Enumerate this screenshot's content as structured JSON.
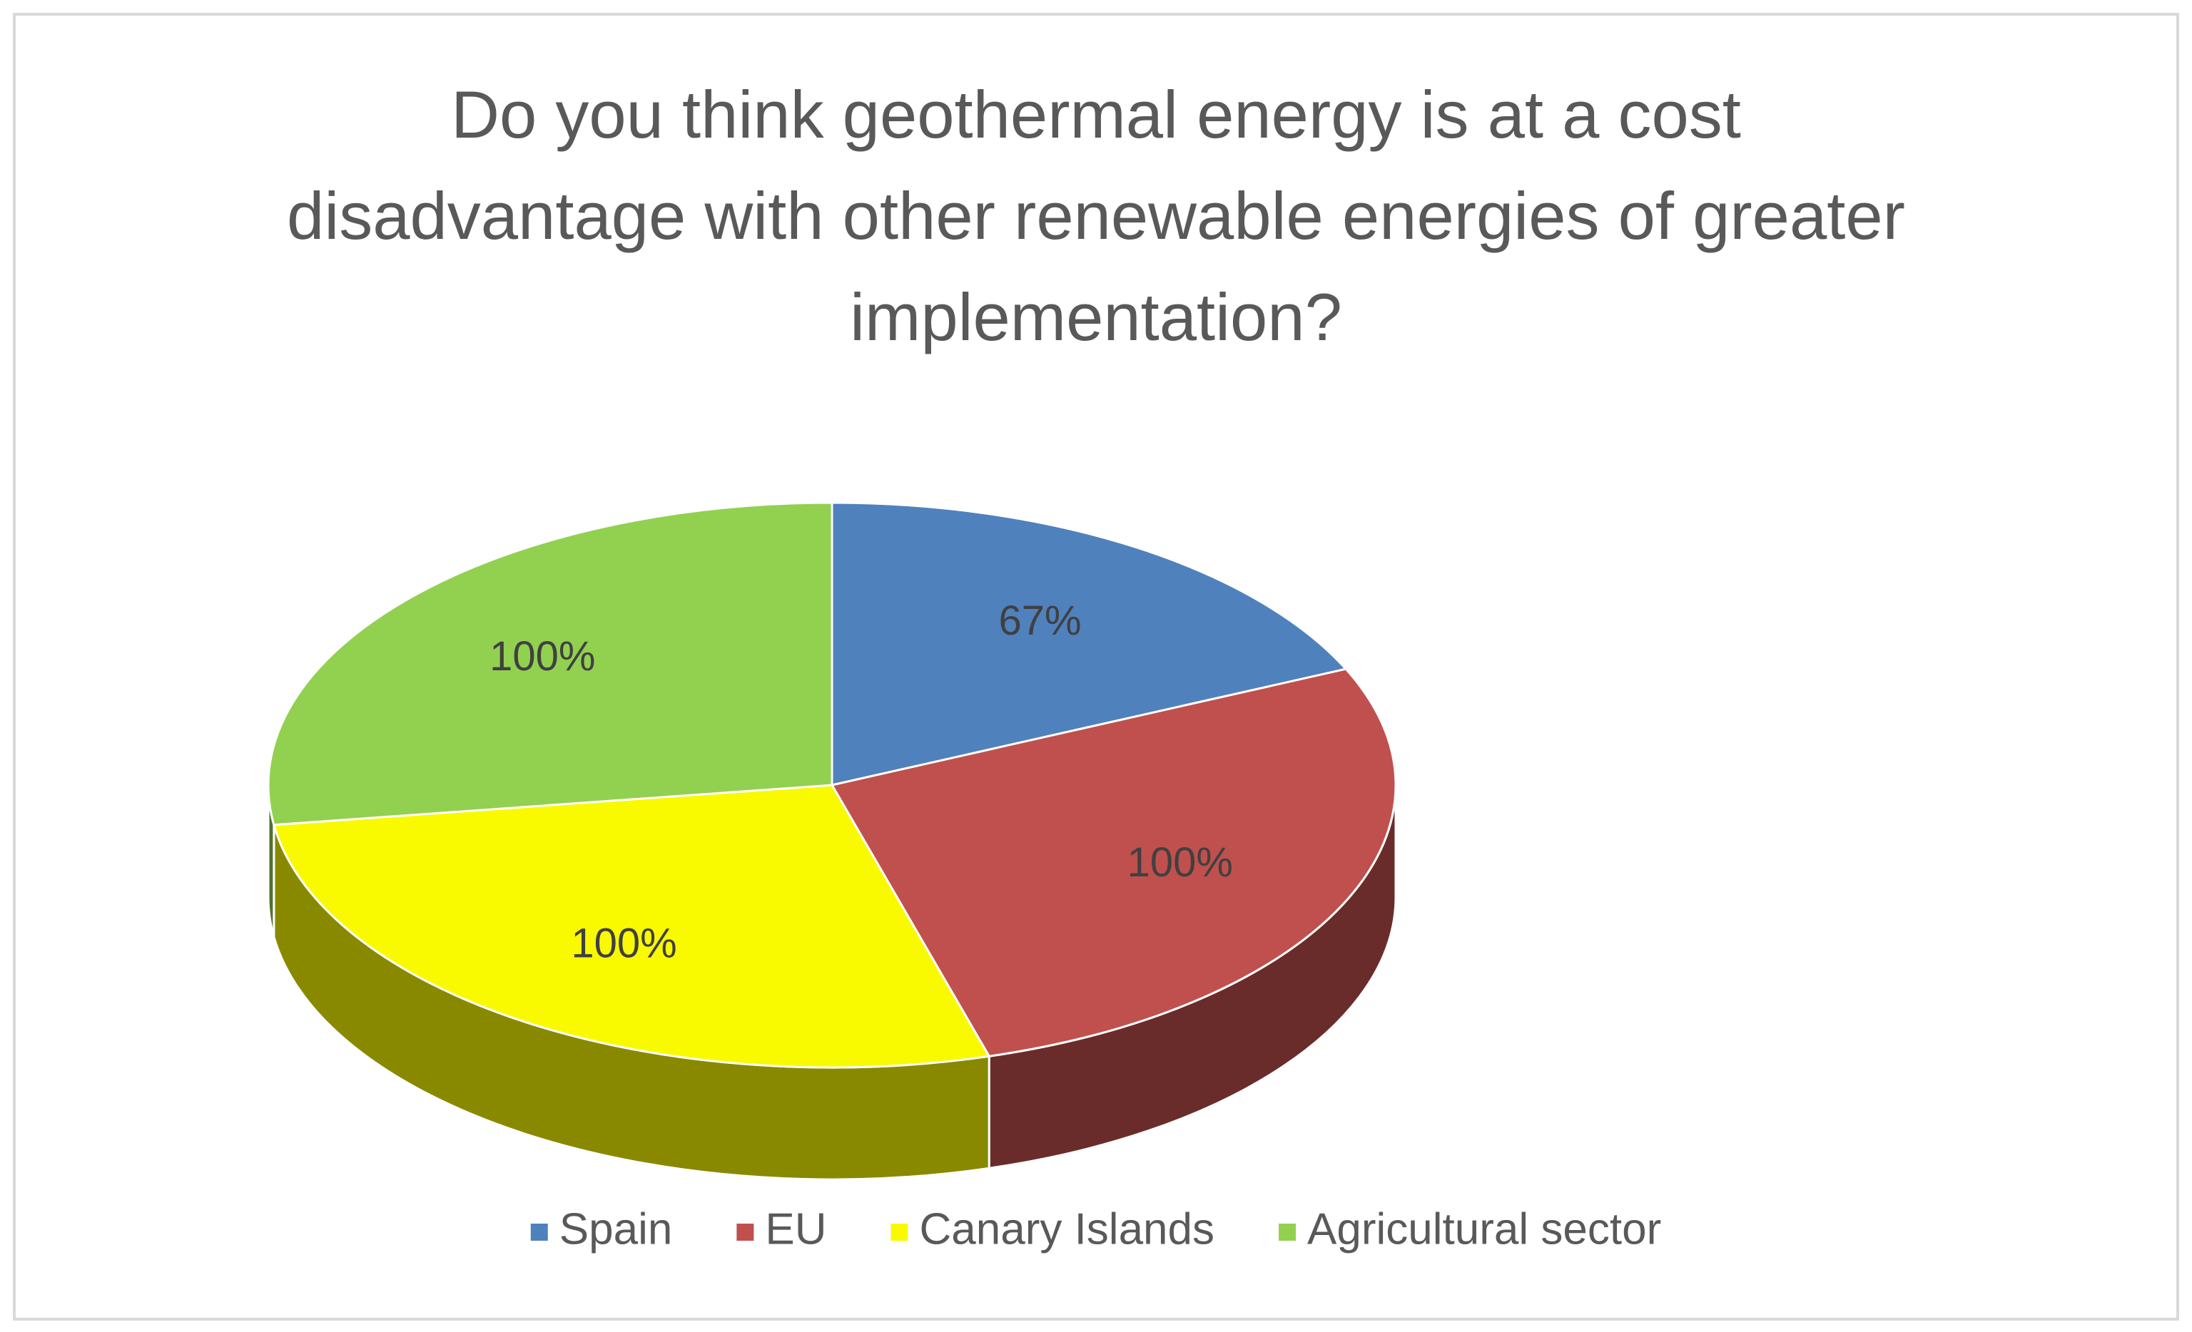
{
  "chart_data": {
    "type": "pie",
    "title": "Do you think geothermal energy is at a cost disadvantage with other renewable energies of greater implementation?",
    "categories": [
      "Spain",
      "EU",
      "Canary Islands",
      "Agricultural sector"
    ],
    "values": [
      67,
      100,
      100,
      100
    ],
    "value_labels": [
      "67%",
      "100%",
      "100%",
      "100%"
    ],
    "colors": [
      "#4f81bd",
      "#c0504d",
      "#f9f900",
      "#92d050"
    ],
    "legend": "bottom"
  }
}
